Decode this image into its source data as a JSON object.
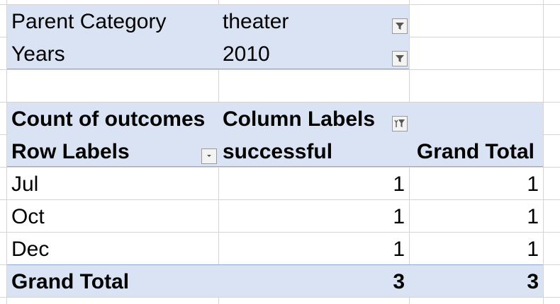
{
  "filters": [
    {
      "label": "Parent Category",
      "value": "theater",
      "icon": "filter-icon"
    },
    {
      "label": "Years",
      "value": "2010",
      "icon": "filter-icon"
    }
  ],
  "pivot": {
    "value_field": "Count of outcomes",
    "column_labels": "Column Labels",
    "row_labels": "Row Labels",
    "column_header": "successful",
    "grand_total_header": "Grand Total",
    "rows": [
      {
        "label": "Jul",
        "successful": "1",
        "total": "1"
      },
      {
        "label": "Oct",
        "successful": "1",
        "total": "1"
      },
      {
        "label": "Dec",
        "successful": "1",
        "total": "1"
      }
    ],
    "grand_total": {
      "label": "Grand Total",
      "successful": "3",
      "total": "3"
    }
  },
  "colors": {
    "header_fill": "#dae3f3",
    "gridline": "#d4d4d4",
    "rule": "#8ea9db"
  }
}
